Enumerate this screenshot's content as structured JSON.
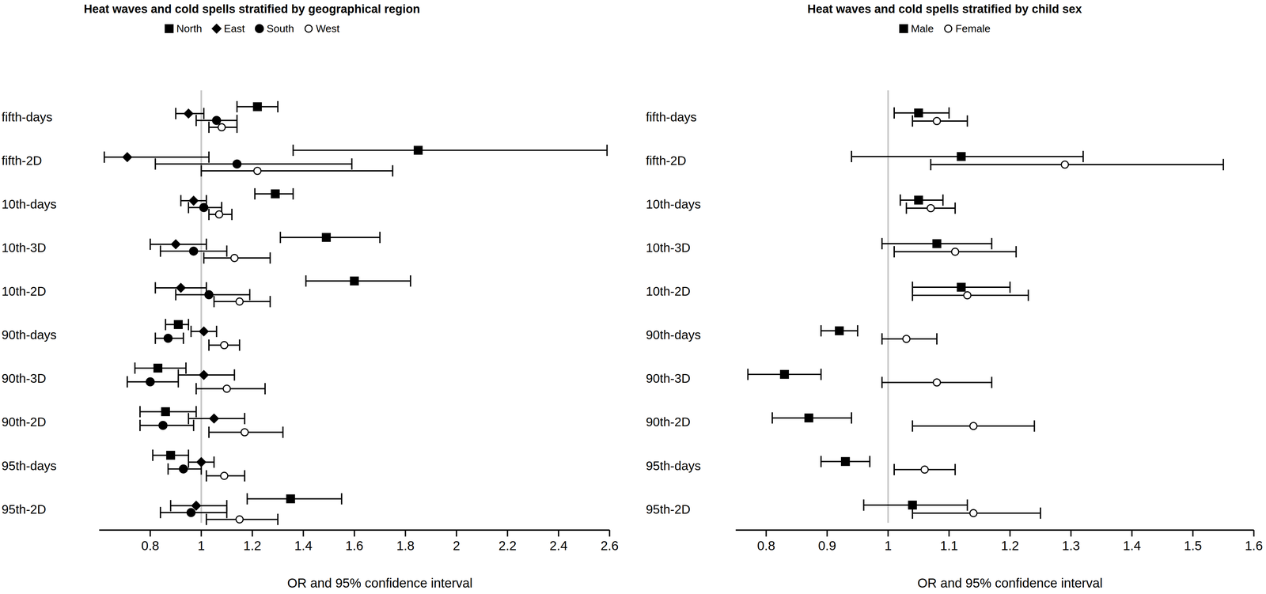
{
  "chart_data": [
    {
      "type": "forest",
      "title": "Heat waves and cold spells stratified by geographical region",
      "x_label": "OR and 95% confidence interval",
      "categories": [
        "fifth-days",
        "fifth-2D",
        "10th-days",
        "10th-3D",
        "10th-2D",
        "90th-days",
        "90th-3D",
        "90th-2D",
        "95th-days",
        "95th-2D"
      ],
      "xlim": [
        0.6,
        2.6
      ],
      "xticks": [
        0.8,
        1,
        1.2,
        1.4,
        1.6,
        1.8,
        2,
        2.2,
        2.4,
        2.6
      ],
      "reference_line": 1,
      "legend": "top",
      "series": [
        {
          "name": "North",
          "marker": "square",
          "color": "#000000",
          "values": [
            1.22,
            1.85,
            1.29,
            1.49,
            1.6,
            0.91,
            0.83,
            0.86,
            0.88,
            1.35
          ],
          "ci_lower": [
            1.14,
            1.36,
            1.21,
            1.31,
            1.41,
            0.86,
            0.74,
            0.76,
            0.81,
            1.18
          ],
          "ci_upper": [
            1.3,
            2.59,
            1.36,
            1.7,
            1.82,
            0.95,
            0.94,
            0.98,
            0.95,
            1.55
          ]
        },
        {
          "name": "East",
          "marker": "diamond",
          "color": "#000000",
          "values": [
            0.95,
            0.71,
            0.97,
            0.9,
            0.92,
            1.01,
            1.01,
            1.05,
            1.0,
            0.98
          ],
          "ci_lower": [
            0.9,
            0.62,
            0.92,
            0.8,
            0.82,
            0.96,
            0.91,
            0.95,
            0.95,
            0.88
          ],
          "ci_upper": [
            1.01,
            1.03,
            1.02,
            1.02,
            1.02,
            1.06,
            1.13,
            1.17,
            1.05,
            1.1
          ]
        },
        {
          "name": "South",
          "marker": "circle",
          "color": "#000000",
          "values": [
            1.06,
            1.14,
            1.01,
            0.97,
            1.03,
            0.87,
            0.8,
            0.85,
            0.93,
            0.96
          ],
          "ci_lower": [
            0.98,
            0.82,
            0.95,
            0.84,
            0.9,
            0.82,
            0.71,
            0.76,
            0.87,
            0.84
          ],
          "ci_upper": [
            1.14,
            1.59,
            1.08,
            1.1,
            1.19,
            0.93,
            0.91,
            0.97,
            1.0,
            1.1
          ]
        },
        {
          "name": "West",
          "marker": "open_circle",
          "color": "#000000",
          "values": [
            1.08,
            1.22,
            1.07,
            1.13,
            1.15,
            1.09,
            1.1,
            1.17,
            1.09,
            1.15
          ],
          "ci_lower": [
            1.03,
            1.0,
            1.03,
            1.01,
            1.05,
            1.03,
            0.98,
            1.03,
            1.02,
            1.02
          ],
          "ci_upper": [
            1.14,
            1.75,
            1.12,
            1.27,
            1.27,
            1.15,
            1.25,
            1.32,
            1.17,
            1.3
          ]
        }
      ]
    },
    {
      "type": "forest",
      "title": "Heat waves and cold spells stratified by child sex",
      "x_label": "OR and 95% confidence interval",
      "categories": [
        "fifth-days",
        "fifth-2D",
        "10th-days",
        "10th-3D",
        "10th-2D",
        "90th-days",
        "90th-3D",
        "90th-2D",
        "95th-days",
        "95th-2D"
      ],
      "xlim": [
        0.75,
        1.6
      ],
      "xticks": [
        0.8,
        0.9,
        1,
        1.1,
        1.2,
        1.3,
        1.4,
        1.5,
        1.6
      ],
      "reference_line": 1,
      "legend": "top",
      "series": [
        {
          "name": "Male",
          "marker": "square",
          "color": "#000000",
          "values": [
            1.05,
            1.12,
            1.05,
            1.08,
            1.12,
            0.92,
            0.83,
            0.87,
            0.93,
            1.04
          ],
          "ci_lower": [
            1.01,
            0.94,
            1.02,
            0.99,
            1.04,
            0.89,
            0.77,
            0.81,
            0.89,
            0.96
          ],
          "ci_upper": [
            1.1,
            1.32,
            1.09,
            1.17,
            1.2,
            0.95,
            0.89,
            0.94,
            0.97,
            1.13
          ]
        },
        {
          "name": "Female",
          "marker": "open_circle",
          "color": "#000000",
          "values": [
            1.08,
            1.29,
            1.07,
            1.11,
            1.13,
            1.03,
            1.08,
            1.14,
            1.06,
            1.14
          ],
          "ci_lower": [
            1.04,
            1.07,
            1.03,
            1.01,
            1.04,
            0.99,
            0.99,
            1.04,
            1.01,
            1.04
          ],
          "ci_upper": [
            1.13,
            1.55,
            1.11,
            1.21,
            1.23,
            1.08,
            1.17,
            1.24,
            1.11,
            1.25
          ]
        }
      ]
    }
  ]
}
